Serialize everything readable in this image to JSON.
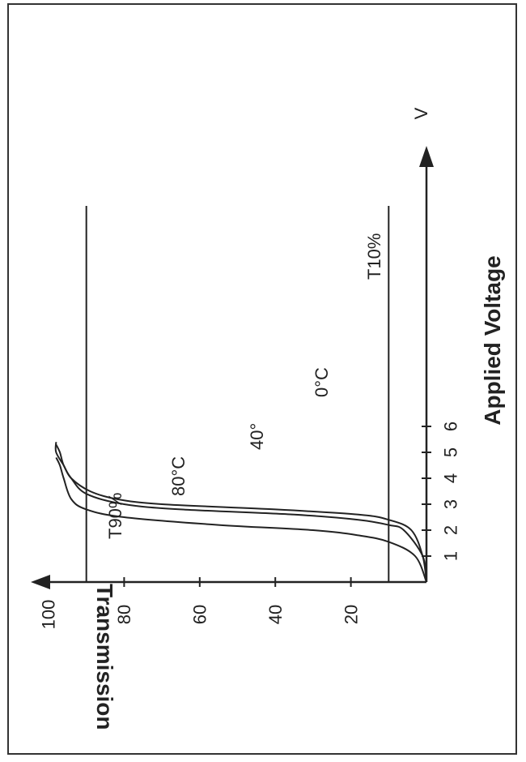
{
  "chart_data": {
    "type": "line",
    "orientation": "rotated-90-clockwise",
    "xlabel": "Applied Voltage",
    "xunit": "V",
    "ylabel": "Transmission",
    "xlim": [
      0,
      7
    ],
    "ylim": [
      0,
      110
    ],
    "x_ticks": [
      "1",
      "2",
      "3",
      "4",
      "5",
      "6"
    ],
    "y_ticks": [
      "20",
      "40",
      "60",
      "80",
      "100"
    ],
    "series": [
      {
        "name": "0°C",
        "x": [
          0,
          1,
          2,
          2.4,
          2.6,
          2.8,
          3,
          3.2,
          3.5,
          4,
          4.5,
          5,
          5.4
        ],
        "y": [
          0,
          1,
          4,
          10,
          18,
          40,
          70,
          82,
          89,
          94,
          96,
          98,
          98
        ]
      },
      {
        "name": "40°",
        "x": [
          0,
          1,
          2,
          2.2,
          2.4,
          2.6,
          2.8,
          3,
          3.4,
          4,
          4.5,
          5,
          5.3
        ],
        "y": [
          0,
          1,
          6,
          10,
          18,
          35,
          65,
          80,
          90,
          94,
          96,
          97,
          98
        ]
      },
      {
        "name": "80°C",
        "x": [
          0,
          1,
          1.55,
          1.8,
          2,
          2.2,
          2.5,
          2.8,
          3.2,
          4,
          4.5,
          4.8
        ],
        "y": [
          0,
          3,
          10,
          18,
          30,
          55,
          80,
          90,
          94,
          96,
          97,
          98
        ]
      }
    ],
    "reference_lines": [
      {
        "label": "T90%",
        "y": 90
      },
      {
        "label": "T10%",
        "y": 10
      }
    ],
    "colors": {
      "line": "#222222",
      "border": "#333333"
    }
  }
}
